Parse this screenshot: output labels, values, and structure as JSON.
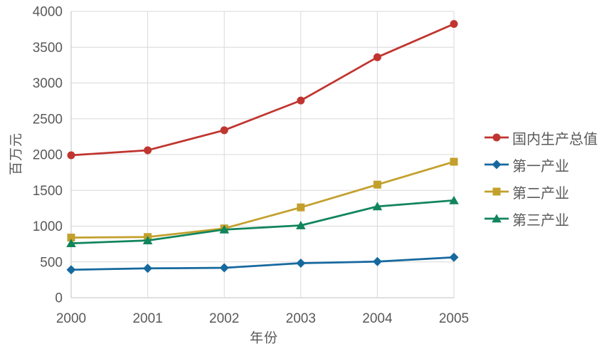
{
  "chart_data": {
    "type": "line",
    "title": "",
    "xlabel": "年份",
    "ylabel": "百万元",
    "categories": [
      "2000",
      "2001",
      "2002",
      "2003",
      "2004",
      "2005"
    ],
    "ylim": [
      0,
      4000
    ],
    "y_ticks": [
      0,
      500,
      1000,
      1500,
      2000,
      2500,
      3000,
      3500,
      4000
    ],
    "grid": "both",
    "legend_position": "right",
    "series": [
      {
        "key": "gdp",
        "name": "国内生产总值",
        "color": "#c0352f",
        "marker": "circle",
        "values": [
          1990,
          2060,
          2340,
          2755,
          3360,
          3825
        ]
      },
      {
        "key": "primary-industry",
        "name": "第一产业",
        "color": "#16699e",
        "marker": "diamond",
        "values": [
          390,
          410,
          418,
          482,
          505,
          565
        ]
      },
      {
        "key": "secondary-industry",
        "name": "第二产业",
        "color": "#c3a02c",
        "marker": "square",
        "values": [
          840,
          848,
          968,
          1262,
          1580,
          1900
        ]
      },
      {
        "key": "tertiary-industry",
        "name": "第三产业",
        "color": "#11855c",
        "marker": "triangle",
        "values": [
          760,
          800,
          952,
          1010,
          1275,
          1360
        ]
      }
    ],
    "colors": {
      "background": "#ffffff",
      "grid": "#d9d9d9",
      "axis": "#c0c0c0",
      "text": "#595959"
    }
  }
}
